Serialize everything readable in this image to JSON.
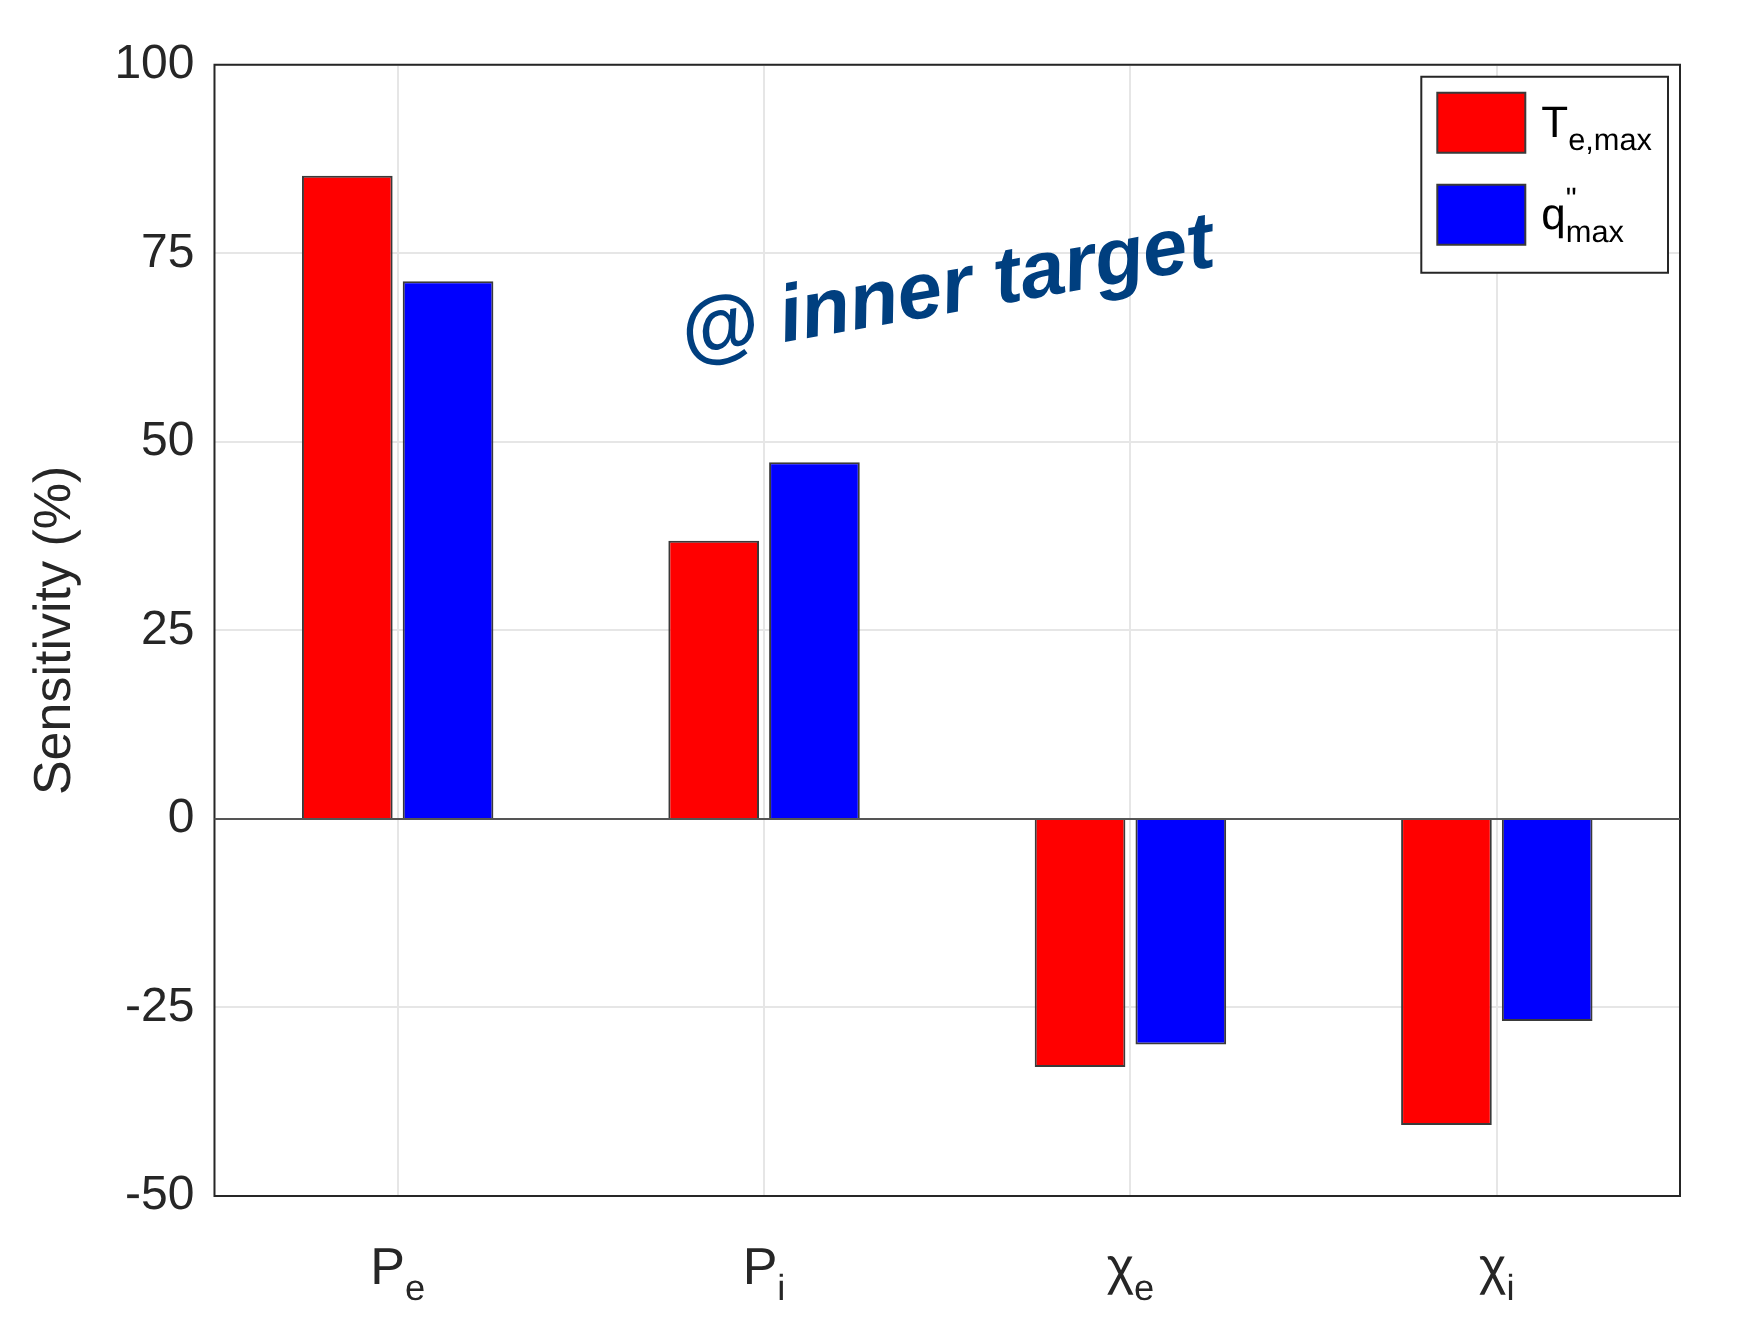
{
  "chart_data": {
    "type": "bar",
    "ylabel": "Sensitivity (%)",
    "categories": [
      "P$_{e}$",
      "P$_{i}$",
      "χ$_{e}$",
      "χ$_{i}$"
    ],
    "series": [
      {
        "name": "T$_{e,max}$",
        "color": "#ff0000",
        "values": [
          85.3,
          36.9,
          -32.9,
          -40.6
        ]
      },
      {
        "name": "q$^{\"}$$_{max}$",
        "color": "#0000ff",
        "values": [
          71.3,
          47.3,
          -29.9,
          -26.8
        ]
      }
    ],
    "ylim": [
      -50,
      100
    ],
    "yticks": [
      -50,
      -25,
      0,
      25,
      50,
      75,
      100
    ],
    "grid": true,
    "legend": "top right",
    "annotations": [
      "@ inner target"
    ]
  }
}
